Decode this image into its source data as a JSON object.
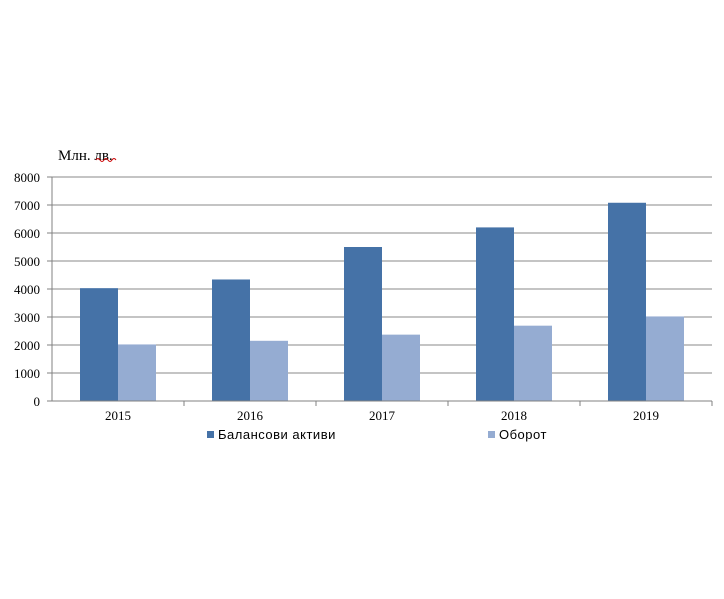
{
  "chart_data": {
    "type": "bar",
    "ylabel": "Млн. лв.",
    "categories": [
      "2015",
      "2016",
      "2017",
      "2018",
      "2019"
    ],
    "series": [
      {
        "name": "Балансови  активи",
        "values": [
          4030,
          4340,
          5500,
          6200,
          7080
        ]
      },
      {
        "name": "Оборот",
        "values": [
          2020,
          2150,
          2370,
          2690,
          3020
        ]
      }
    ],
    "ylim": [
      0,
      8000
    ],
    "yticks": [
      0,
      1000,
      2000,
      3000,
      4000,
      5000,
      6000,
      7000,
      8000
    ],
    "grid": true,
    "legend_position": "bottom",
    "colors": [
      "#4572A7",
      "#95ACD2"
    ]
  }
}
